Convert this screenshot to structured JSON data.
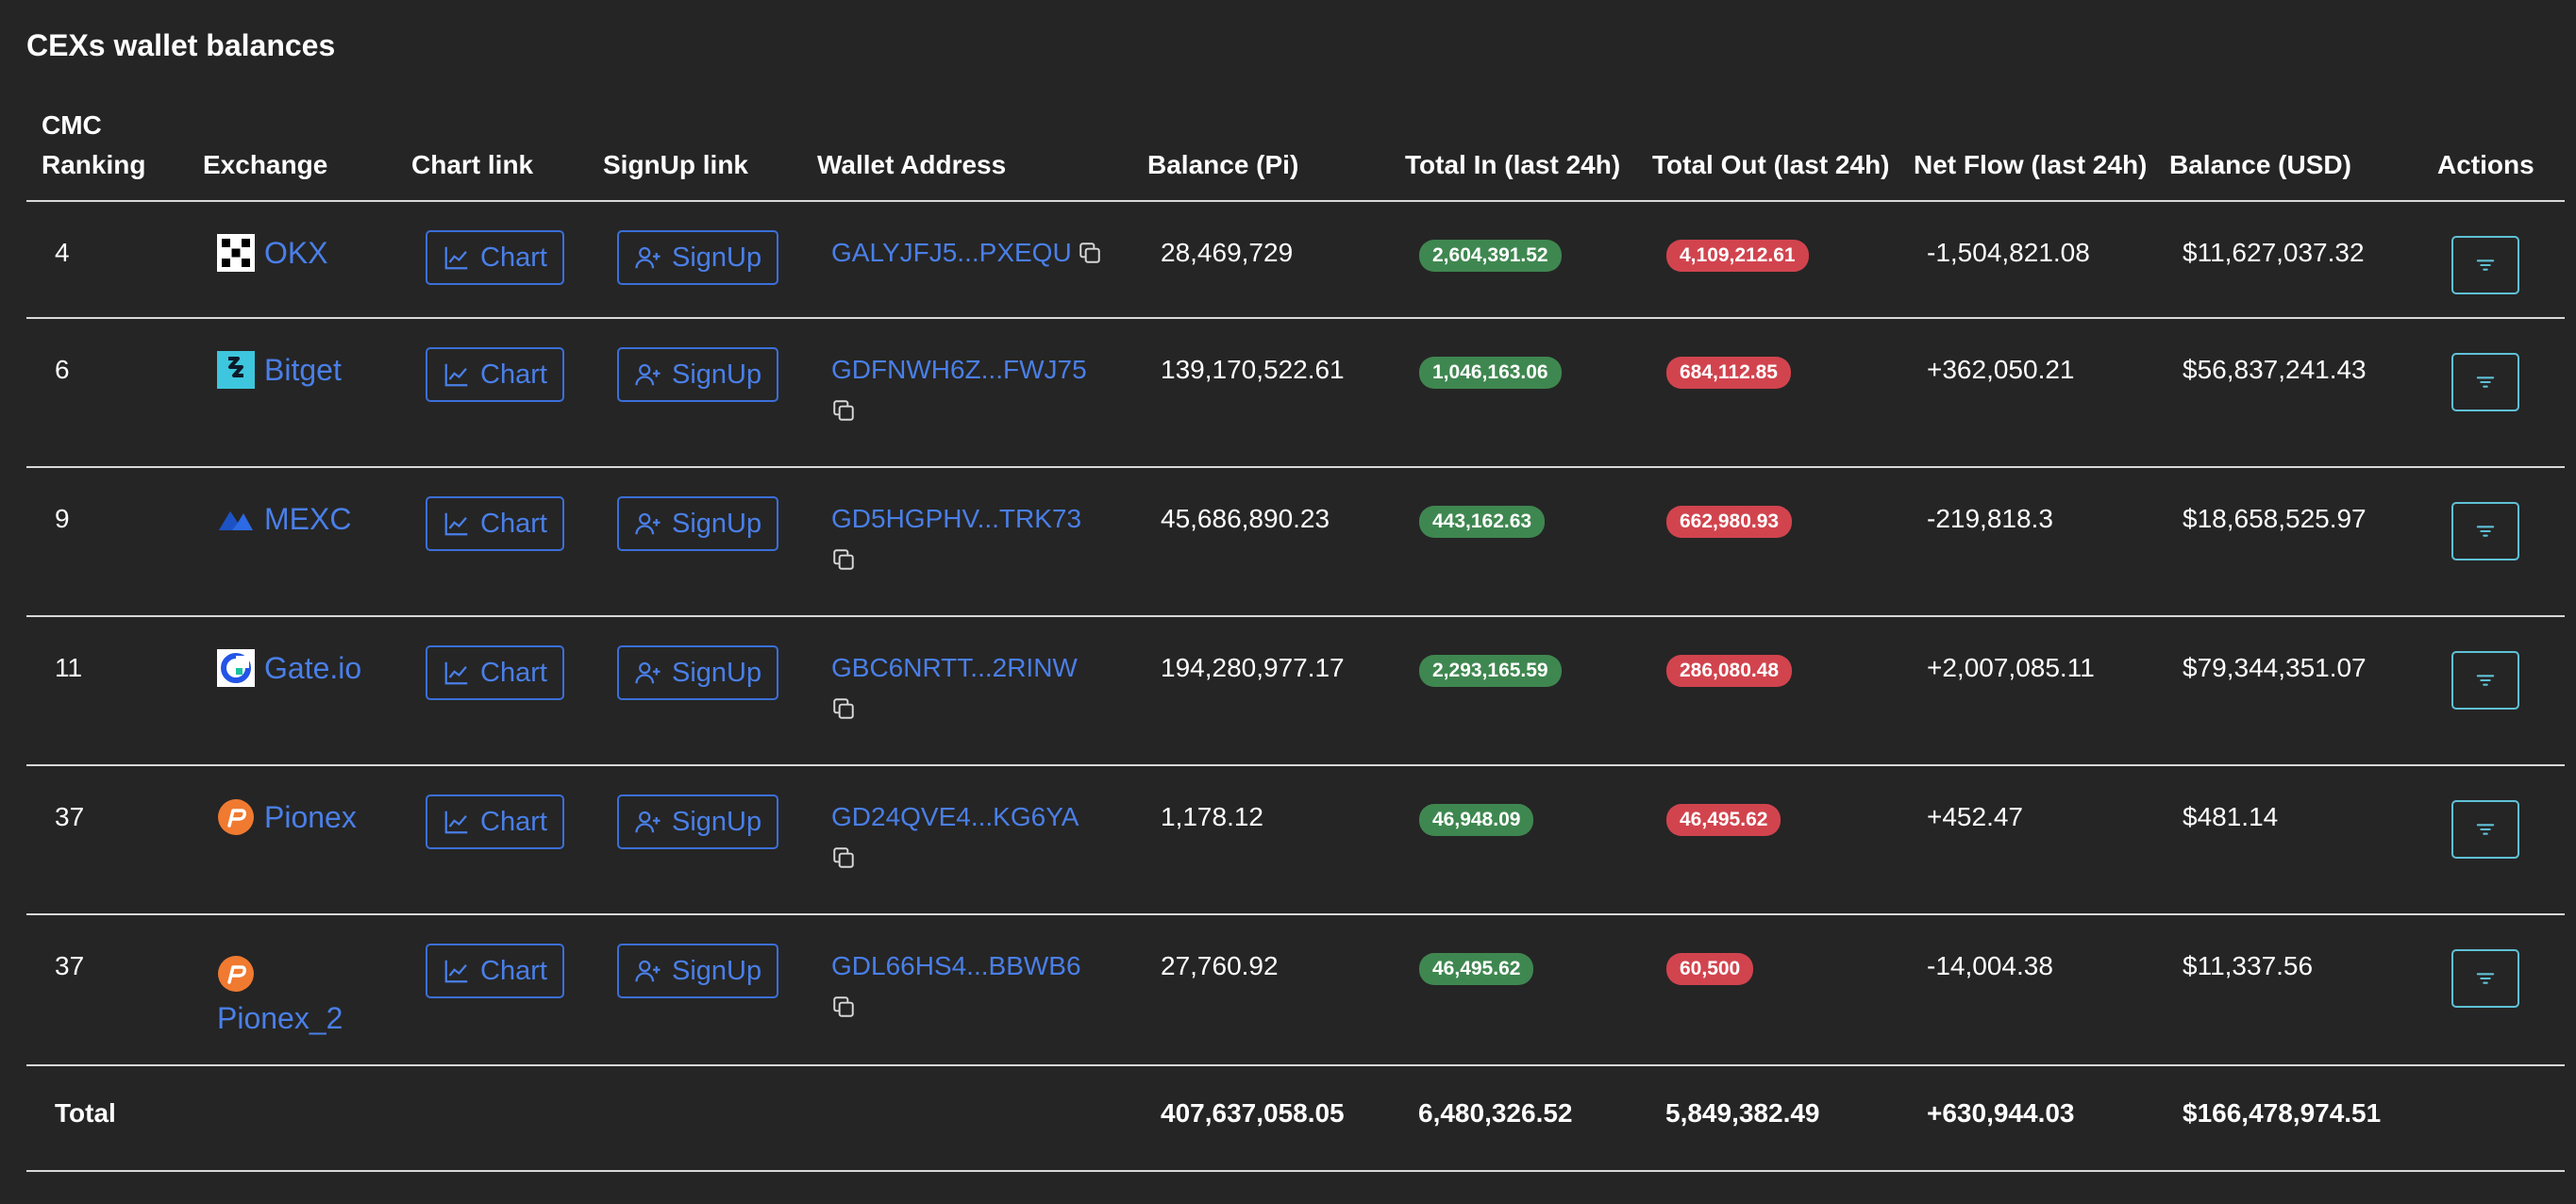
{
  "title": "CEXs wallet balances",
  "columns": {
    "rank": "CMC Ranking",
    "exchange": "Exchange",
    "chart": "Chart link",
    "signup": "SignUp link",
    "wallet": "Wallet Address",
    "balance_pi": "Balance (Pi)",
    "total_in": "Total In (last 24h)",
    "total_out": "Total Out (last 24h)",
    "net_flow": "Net Flow (last 24h)",
    "balance_usd": "Balance (USD)",
    "actions": "Actions"
  },
  "button_labels": {
    "chart": "Chart",
    "signup": "SignUp"
  },
  "colors": {
    "link": "#4a7fe8",
    "badge_in": "#3f8750",
    "badge_out": "#d1444e",
    "net_positive": "#4f9760",
    "net_negative": "#e0525a",
    "action_border": "#5fc1d6"
  },
  "rows": [
    {
      "rank": "4",
      "exchange": "OKX",
      "logo": "okx-logo",
      "wallet": "GALYJFJ5...PXEQU",
      "balance_pi": "28,469,729",
      "total_in": "2,604,391.52",
      "total_out": "4,109,212.61",
      "net_flow": "-1,504,821.08",
      "net_sign": "negative",
      "balance_usd": "$11,627,037.32"
    },
    {
      "rank": "6",
      "exchange": "Bitget",
      "logo": "bitget-logo",
      "wallet": "GDFNWH6Z...FWJ75",
      "balance_pi": "139,170,522.61",
      "total_in": "1,046,163.06",
      "total_out": "684,112.85",
      "net_flow": "+362,050.21",
      "net_sign": "positive",
      "balance_usd": "$56,837,241.43"
    },
    {
      "rank": "9",
      "exchange": "MEXC",
      "logo": "mexc-logo",
      "wallet": "GD5HGPHV...TRK73",
      "balance_pi": "45,686,890.23",
      "total_in": "443,162.63",
      "total_out": "662,980.93",
      "net_flow": "-219,818.3",
      "net_sign": "negative",
      "balance_usd": "$18,658,525.97"
    },
    {
      "rank": "11",
      "exchange": "Gate.io",
      "logo": "gateio-logo",
      "wallet": "GBC6NRTT...2RINW",
      "balance_pi": "194,280,977.17",
      "total_in": "2,293,165.59",
      "total_out": "286,080.48",
      "net_flow": "+2,007,085.11",
      "net_sign": "positive",
      "balance_usd": "$79,344,351.07"
    },
    {
      "rank": "37",
      "exchange": "Pionex",
      "logo": "pionex-logo",
      "wallet": "GD24QVE4...KG6YA",
      "balance_pi": "1,178.12",
      "total_in": "46,948.09",
      "total_out": "46,495.62",
      "net_flow": "+452.47",
      "net_sign": "positive",
      "balance_usd": "$481.14"
    },
    {
      "rank": "37",
      "exchange": "Pionex_2",
      "logo": "pionex-logo",
      "wallet": "GDL66HS4...BBWB6",
      "balance_pi": "27,760.92",
      "total_in": "46,495.62",
      "total_out": "60,500",
      "net_flow": "-14,004.38",
      "net_sign": "negative",
      "balance_usd": "$11,337.56"
    }
  ],
  "totals": {
    "label": "Total",
    "balance_pi": "407,637,058.05",
    "total_in": "6,480,326.52",
    "total_out": "5,849,382.49",
    "net_flow": "+630,944.03",
    "balance_usd": "$166,478,974.51"
  }
}
